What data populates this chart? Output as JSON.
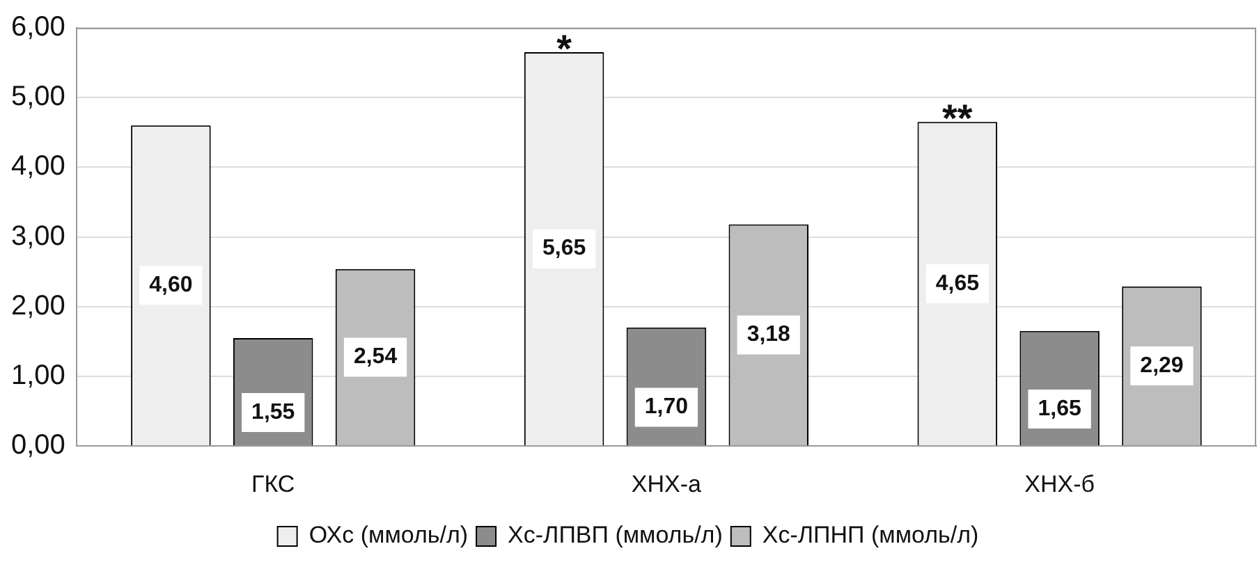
{
  "chart_data": {
    "type": "bar",
    "categories": [
      "ГКС",
      "ХНХ-а",
      "ХНХ-б"
    ],
    "series": [
      {
        "name": "ОХс (ммоль/л)",
        "color": "#eeeeee",
        "values": [
          4.6,
          5.65,
          4.65
        ],
        "value_labels": [
          "4,60",
          "5,65",
          "4,65"
        ]
      },
      {
        "name": "Хс-ЛПВП (ммоль/л)",
        "color": "#8c8c8c",
        "values": [
          1.55,
          1.7,
          1.65
        ],
        "value_labels": [
          "1,55",
          "1,70",
          "1,65"
        ]
      },
      {
        "name": "Хс-ЛПНП (ммоль/л)",
        "color": "#bdbdbd",
        "values": [
          2.54,
          3.18,
          2.29
        ],
        "value_labels": [
          "2,54",
          "3,18",
          "2,29"
        ]
      }
    ],
    "ylim": [
      0,
      6
    ],
    "yticks": [
      {
        "value": 0,
        "label": "0,00"
      },
      {
        "value": 1,
        "label": "1,00"
      },
      {
        "value": 2,
        "label": "2,00"
      },
      {
        "value": 3,
        "label": "3,00"
      },
      {
        "value": 4,
        "label": "4,00"
      },
      {
        "value": 5,
        "label": "5,00"
      },
      {
        "value": 6,
        "label": "6,00"
      }
    ],
    "grid": "y",
    "legend": "bottom",
    "annotations": [
      "*",
      "**"
    ]
  }
}
